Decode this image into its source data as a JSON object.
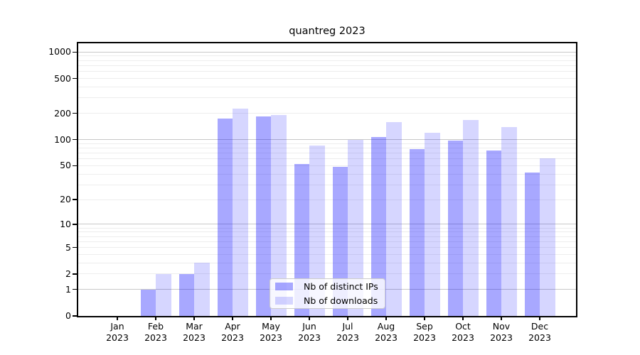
{
  "title": "quantreg 2023",
  "chart_data": {
    "type": "bar",
    "title": "quantreg 2023",
    "categories": [
      "Jan 2023",
      "Feb 2023",
      "Mar 2023",
      "Apr 2023",
      "May 2023",
      "Jun 2023",
      "Jul 2023",
      "Aug 2023",
      "Sep 2023",
      "Oct 2023",
      "Nov 2023",
      "Dec 2023"
    ],
    "series": [
      {
        "name": "Nb of distinct IPs",
        "color": "#aaaaff",
        "fill": "rgba(0,0,255,0.34)",
        "values": [
          0,
          1,
          2,
          175,
          185,
          52,
          49,
          107,
          78,
          97,
          75,
          42
        ]
      },
      {
        "name": "Nb of downloads",
        "color": "#d9d9fa",
        "fill": "rgba(0,0,255,0.16)",
        "values": [
          0,
          2,
          3,
          225,
          193,
          85,
          100,
          158,
          119,
          167,
          139,
          61
        ]
      }
    ],
    "y_ticks": [
      0,
      1,
      2,
      5,
      10,
      20,
      50,
      100,
      200,
      500,
      1000
    ],
    "y_scale": "log1p",
    "ylim": [
      0,
      1260
    ],
    "xlabel": "",
    "ylabel": "",
    "grid": true,
    "legend_position": "lower-center",
    "grid_major_color": "#c8c8c8",
    "grid_minor_color": "#ededed",
    "axis_color": "#000000",
    "background": "#ffffff"
  }
}
